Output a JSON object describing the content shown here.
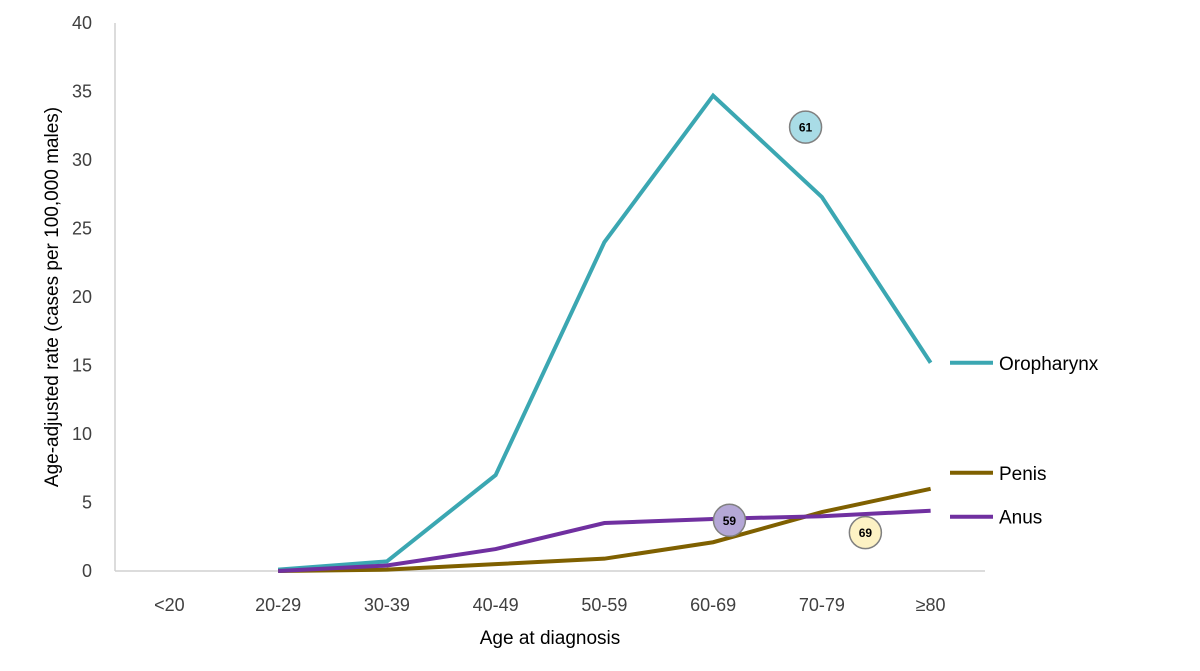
{
  "chart_data": {
    "type": "line",
    "title": "",
    "xlabel": "Age at diagnosis",
    "ylabel": "Age-adjusted rate (cases per 100,000 males)",
    "categories": [
      "<20",
      "20-29",
      "30-39",
      "40-49",
      "50-59",
      "60-69",
      "70-79",
      "≥80"
    ],
    "ylim": [
      0,
      40
    ],
    "yticks": [
      "0",
      "5",
      "10",
      "15",
      "20",
      "25",
      "30",
      "35",
      "40"
    ],
    "grid": false,
    "legend_position": "right, at line ends",
    "series": [
      {
        "name": "Oropharynx",
        "color": "#3ba7b2",
        "values": [
          null,
          0.1,
          0.7,
          7.0,
          24.0,
          34.7,
          27.3,
          15.2
        ],
        "median": {
          "label": "61",
          "x": 5.85,
          "y": 32.4,
          "fill": "#a9dce6"
        }
      },
      {
        "name": "Penis",
        "color": "#7f6000",
        "values": [
          null,
          0.0,
          0.1,
          0.5,
          0.9,
          2.1,
          4.3,
          6.0
        ],
        "median": {
          "label": "69",
          "x": 6.4,
          "y": 2.8,
          "fill": "#fdf2c4"
        }
      },
      {
        "name": "Anus",
        "color": "#7030a0",
        "values": [
          null,
          0.0,
          0.4,
          1.6,
          3.5,
          3.8,
          4.0,
          4.4
        ],
        "median": {
          "label": "59",
          "x": 5.15,
          "y": 3.7,
          "fill": "#b4a7d6"
        }
      }
    ]
  }
}
